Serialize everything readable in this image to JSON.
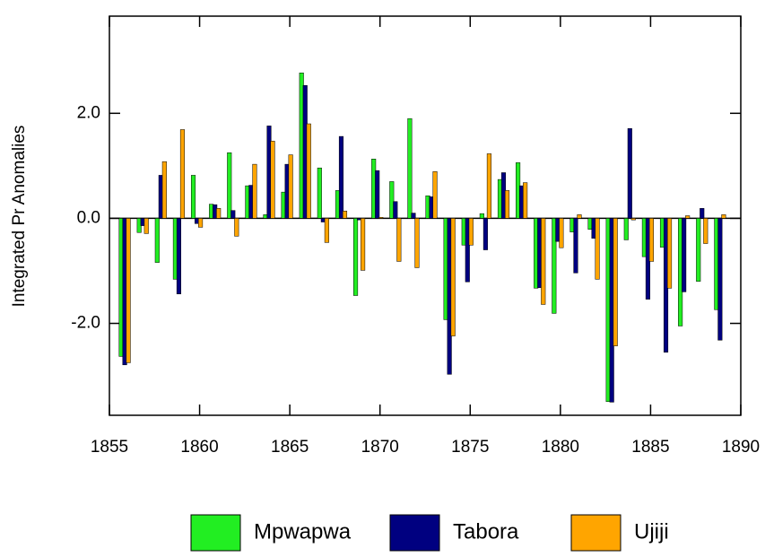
{
  "chart_data": {
    "type": "bar",
    "ylabel": "Integrated Pr Anomalies",
    "x": [
      1856,
      1857,
      1858,
      1859,
      1860,
      1861,
      1862,
      1863,
      1864,
      1865,
      1866,
      1867,
      1868,
      1869,
      1870,
      1871,
      1872,
      1873,
      1874,
      1875,
      1876,
      1877,
      1878,
      1879,
      1880,
      1881,
      1882,
      1883,
      1884,
      1885,
      1886,
      1887,
      1888,
      1889
    ],
    "series": [
      {
        "name": "Mpwapwa",
        "color": "#22ee22",
        "values": [
          -2.63,
          -0.27,
          -0.84,
          -1.16,
          0.82,
          0.27,
          1.25,
          0.62,
          0.07,
          0.5,
          2.77,
          0.96,
          0.53,
          -1.47,
          1.13,
          0.7,
          1.9,
          0.43,
          -1.93,
          -0.51,
          0.09,
          0.74,
          1.06,
          -1.33,
          -1.81,
          -0.26,
          -0.21,
          -3.49,
          -0.41,
          -0.73,
          -0.55,
          -2.05,
          -1.2,
          -1.74
        ]
      },
      {
        "name": "Tabora",
        "color": "#000080",
        "values": [
          -2.79,
          -0.14,
          0.82,
          -1.44,
          -0.1,
          0.26,
          0.15,
          0.63,
          1.76,
          1.03,
          2.53,
          -0.07,
          1.56,
          -0.03,
          0.91,
          0.32,
          0.1,
          0.41,
          -2.97,
          -1.21,
          -0.6,
          0.87,
          0.62,
          -1.32,
          -0.44,
          -1.04,
          -0.38,
          -3.5,
          1.71,
          -1.54,
          -2.55,
          -1.4,
          0.19,
          -2.32
        ]
      },
      {
        "name": "Ujiji",
        "color": "#ffa500",
        "values": [
          -2.75,
          -0.29,
          1.08,
          1.69,
          -0.17,
          0.19,
          -0.34,
          1.03,
          1.47,
          1.21,
          1.8,
          -0.46,
          0.14,
          -0.99,
          0.02,
          -0.82,
          -0.94,
          0.89,
          -2.24,
          -0.51,
          1.23,
          0.53,
          0.68,
          -1.64,
          -0.56,
          0.07,
          -1.16,
          -2.43,
          -0.03,
          -0.82,
          -1.33,
          0.05,
          -0.48,
          0.07
        ]
      }
    ],
    "xlim": [
      1855,
      1890
    ],
    "xticks": [
      1855,
      1860,
      1865,
      1870,
      1875,
      1880,
      1885,
      1890
    ],
    "ylim": [
      -3.75,
      3.85
    ],
    "yticks": [
      {
        "value": -2,
        "label": "-2.0"
      },
      {
        "value": 0,
        "label": "0.0"
      },
      {
        "value": 2,
        "label": "2.0"
      }
    ]
  }
}
